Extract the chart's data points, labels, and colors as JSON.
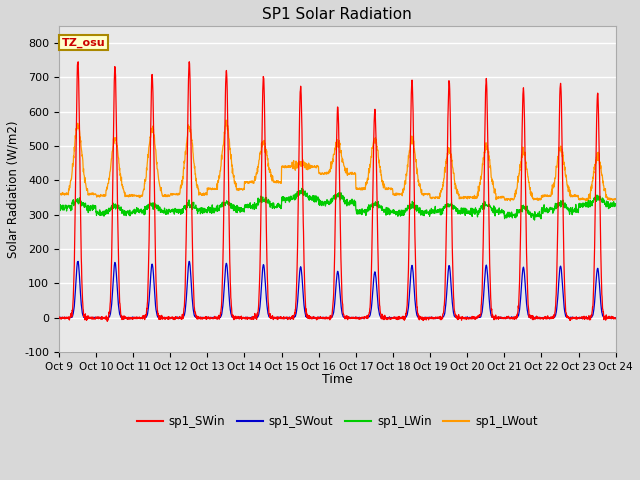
{
  "title": "SP1 Solar Radiation",
  "ylabel": "Solar Radiation (W/m2)",
  "xlabel": "Time",
  "ylim": [
    -100,
    850
  ],
  "yticks": [
    -100,
    0,
    100,
    200,
    300,
    400,
    500,
    600,
    700,
    800
  ],
  "x_labels": [
    "Oct 9",
    "Oct 10",
    "Oct 11",
    "Oct 12",
    "Oct 13",
    "Oct 14",
    "Oct 15",
    "Oct 16",
    "Oct 17",
    "Oct 18",
    "Oct 19",
    "Oct 20",
    "Oct 21",
    "Oct 22",
    "Oct 23",
    "Oct 24"
  ],
  "tz_label": "TZ_osu",
  "fig_bg": "#d8d8d8",
  "plot_bg": "#e8e8e8",
  "grid_color": "#ffffff",
  "colors": {
    "sp1_SWin": "#ff0000",
    "sp1_SWout": "#0000cc",
    "sp1_LWin": "#00cc00",
    "sp1_LWout": "#ff9900"
  },
  "legend_labels": [
    "sp1_SWin",
    "sp1_SWout",
    "sp1_LWin",
    "sp1_LWout"
  ],
  "sw_peaks": [
    750,
    730,
    710,
    745,
    720,
    700,
    675,
    610,
    605,
    695,
    690,
    690,
    665,
    685,
    650
  ],
  "lw_in_base": [
    320,
    305,
    310,
    310,
    315,
    325,
    345,
    335,
    310,
    305,
    310,
    308,
    298,
    312,
    328
  ],
  "lw_out_base": [
    360,
    355,
    355,
    360,
    375,
    395,
    440,
    420,
    375,
    360,
    350,
    350,
    345,
    355,
    345
  ],
  "lw_out_peak": [
    560,
    520,
    550,
    555,
    560,
    510,
    450,
    510,
    520,
    520,
    490,
    500,
    480,
    495,
    470
  ]
}
